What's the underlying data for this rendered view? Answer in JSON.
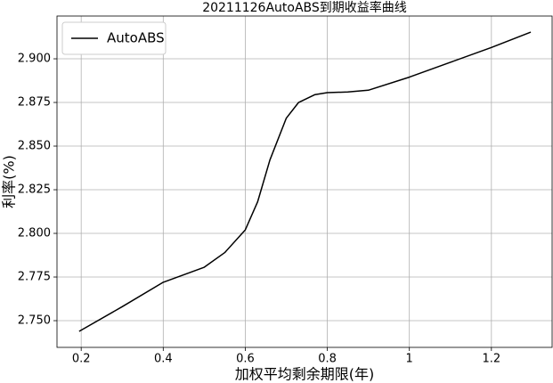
{
  "chart_data": {
    "type": "line",
    "title": "20211126AutoABS到期收益率曲线",
    "xlabel": "加权平均剩余期限(年)",
    "ylabel": "利率(%)",
    "x": [
      0.195,
      0.3,
      0.4,
      0.5,
      0.55,
      0.6,
      0.63,
      0.66,
      0.7,
      0.73,
      0.77,
      0.8,
      0.85,
      0.9,
      1.0,
      1.1,
      1.2,
      1.296
    ],
    "series": [
      {
        "name": "AutoABS",
        "color": "#000000",
        "values": [
          2.7439,
          2.758,
          2.772,
          2.7806,
          2.789,
          2.802,
          2.818,
          2.842,
          2.866,
          2.875,
          2.8795,
          2.8806,
          2.881,
          2.882,
          2.8895,
          2.898,
          2.9065,
          2.9153
        ]
      }
    ],
    "xlim": [
      0.141,
      1.348
    ],
    "ylim": [
      2.7347,
      2.9245
    ],
    "xticks": [
      0.2,
      0.4,
      0.6,
      0.8,
      1.0,
      1.2
    ],
    "yticks": [
      {
        "value": 2.75,
        "label": "2.750"
      },
      {
        "value": 2.775,
        "label": "2.775"
      },
      {
        "value": 2.8,
        "label": "2.800"
      },
      {
        "value": 2.825,
        "label": "2.825"
      },
      {
        "value": 2.85,
        "label": "2.850"
      },
      {
        "value": 2.875,
        "label": "2.875"
      },
      {
        "value": 2.9,
        "label": "2.900"
      }
    ],
    "grid": true,
    "legend": "upper-left"
  }
}
